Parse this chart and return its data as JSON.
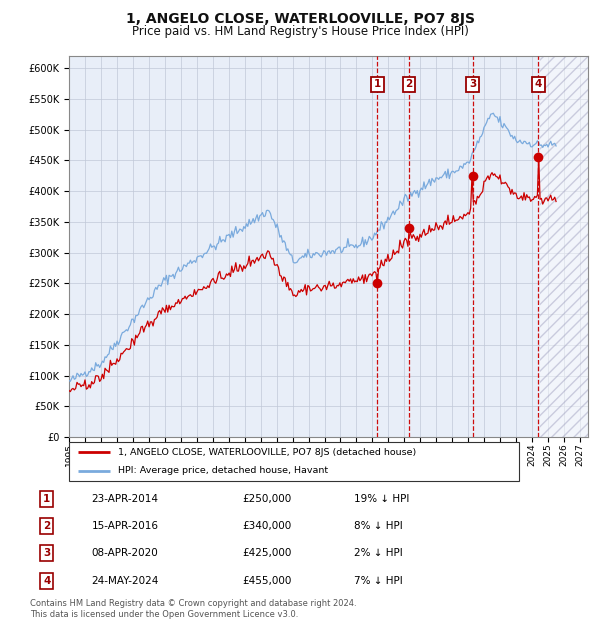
{
  "title": "1, ANGELO CLOSE, WATERLOOVILLE, PO7 8JS",
  "subtitle": "Price paid vs. HM Land Registry's House Price Index (HPI)",
  "ylim": [
    0,
    620000
  ],
  "yticks": [
    0,
    50000,
    100000,
    150000,
    200000,
    250000,
    300000,
    350000,
    400000,
    450000,
    500000,
    550000,
    600000
  ],
  "xlim_start": 1995.0,
  "xlim_end": 2027.5,
  "hpi_color": "#7aaadd",
  "price_color": "#cc0000",
  "bg_color": "#e8eef8",
  "grid_color": "#c0c8d8",
  "sales": [
    {
      "label": "1",
      "date_num": 2014.31,
      "price": 250000
    },
    {
      "label": "2",
      "date_num": 2016.29,
      "price": 340000
    },
    {
      "label": "3",
      "date_num": 2020.27,
      "price": 425000
    },
    {
      "label": "4",
      "date_num": 2024.39,
      "price": 455000
    }
  ],
  "sale_texts": [
    {
      "num": "1",
      "date": "23-APR-2014",
      "price": "£250,000",
      "hpi_txt": "19% ↓ HPI"
    },
    {
      "num": "2",
      "date": "15-APR-2016",
      "price": "£340,000",
      "hpi_txt": "8% ↓ HPI"
    },
    {
      "num": "3",
      "date": "08-APR-2020",
      "price": "£425,000",
      "hpi_txt": "2% ↓ HPI"
    },
    {
      "num": "4",
      "date": "24-MAY-2024",
      "price": "£455,000",
      "hpi_txt": "7% ↓ HPI"
    }
  ],
  "legend_line1": "1, ANGELO CLOSE, WATERLOOVILLE, PO7 8JS (detached house)",
  "legend_line2": "HPI: Average price, detached house, Havant",
  "footer": "Contains HM Land Registry data © Crown copyright and database right 2024.\nThis data is licensed under the Open Government Licence v3.0.",
  "future_start": 2024.5
}
